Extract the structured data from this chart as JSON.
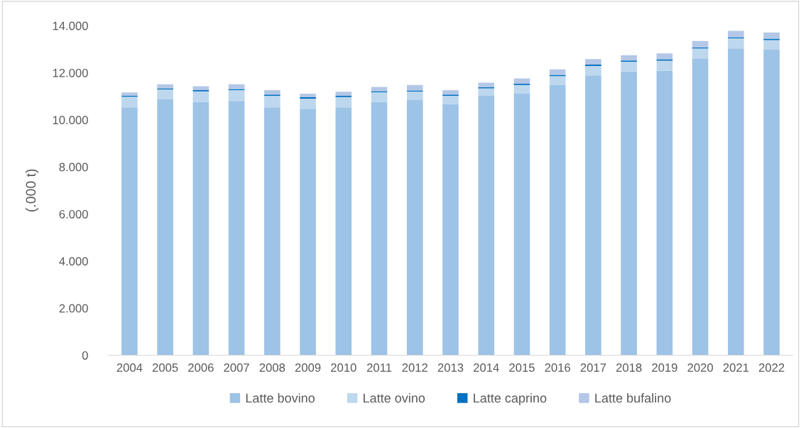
{
  "chart_data": {
    "type": "bar",
    "stacked": true,
    "ylabel": "(.000 t)",
    "categories": [
      "2004",
      "2005",
      "2006",
      "2007",
      "2008",
      "2009",
      "2010",
      "2011",
      "2012",
      "2013",
      "2014",
      "2015",
      "2016",
      "2017",
      "2018",
      "2019",
      "2020",
      "2021",
      "2022"
    ],
    "series": [
      {
        "name": "Latte bovino",
        "color": "#9dc3e6",
        "values": [
          10530,
          10870,
          10760,
          10800,
          10530,
          10470,
          10530,
          10760,
          10840,
          10670,
          11020,
          11110,
          11470,
          11890,
          12050,
          12080,
          12610,
          13030,
          12980
        ]
      },
      {
        "name": "Latte ovino",
        "color": "#bdd7ee",
        "values": [
          450,
          420,
          450,
          460,
          490,
          430,
          440,
          410,
          360,
          350,
          320,
          370,
          390,
          400,
          420,
          430,
          420,
          430,
          410
        ]
      },
      {
        "name": "Latte caprino",
        "color": "#0070c0",
        "values": [
          50,
          50,
          50,
          50,
          50,
          60,
          50,
          50,
          50,
          50,
          50,
          50,
          50,
          60,
          50,
          60,
          50,
          50,
          60
        ]
      },
      {
        "name": "Latte bufalino",
        "color": "#b4c7e7",
        "values": [
          130,
          170,
          170,
          200,
          190,
          150,
          170,
          180,
          230,
          190,
          190,
          230,
          230,
          230,
          230,
          250,
          270,
          270,
          260
        ]
      }
    ],
    "ylim": [
      0,
      14000
    ],
    "yticks": [
      {
        "value": 0,
        "label": "0"
      },
      {
        "value": 2000,
        "label": "2.000"
      },
      {
        "value": 4000,
        "label": "4.000"
      },
      {
        "value": 6000,
        "label": "6.000"
      },
      {
        "value": 8000,
        "label": "8.000"
      },
      {
        "value": 10000,
        "label": "10.000"
      },
      {
        "value": 12000,
        "label": "12.000"
      },
      {
        "value": 14000,
        "label": "14.000"
      }
    ],
    "grid": false,
    "legend": "bottom"
  }
}
